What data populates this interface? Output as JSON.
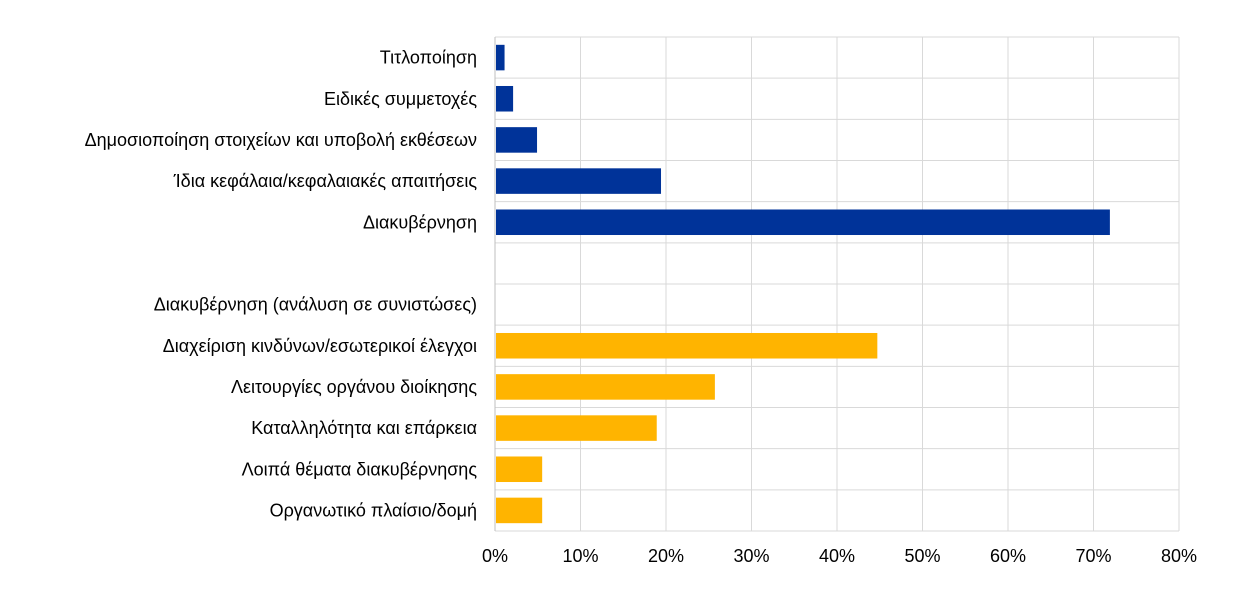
{
  "chart_data": {
    "type": "bar",
    "orientation": "horizontal",
    "title": "",
    "xlabel": "",
    "ylabel": "",
    "xlim": [
      0,
      80
    ],
    "x_ticks": [
      "0%",
      "10%",
      "20%",
      "30%",
      "40%",
      "50%",
      "60%",
      "70%",
      "80%"
    ],
    "grid": true,
    "legend": "none",
    "colors": {
      "primary": "#003399",
      "secondary": "#ffb400",
      "grid": "#d9d9d9"
    },
    "categories": [
      "Τιτλοποίηση",
      "Ειδικές συμμετοχές",
      "Δημοσιοποίηση στοιχείων και υποβολή εκθέσεων",
      "Ίδια κεφάλαια/κεφαλαιακές απαιτήσεις",
      "Διακυβέρνηση",
      "",
      "Διακυβέρνηση (ανάλυση σε συνιστώσες)",
      "Διαχείριση κινδύνων/εσωτερικοί έλεγχοι",
      "Λειτουργίες οργάνου διοίκησης",
      "Καταλληλότητα και επάρκεια",
      "Λοιπά θέματα διακυβέρνησης",
      "Οργανωτικό πλαίσιο/δομή"
    ],
    "values": [
      1.0,
      2.0,
      4.8,
      19.3,
      71.8,
      null,
      null,
      44.6,
      25.6,
      18.8,
      5.4,
      5.4
    ],
    "bar_colors": [
      "primary",
      "primary",
      "primary",
      "primary",
      "primary",
      null,
      null,
      "secondary",
      "secondary",
      "secondary",
      "secondary",
      "secondary"
    ]
  }
}
